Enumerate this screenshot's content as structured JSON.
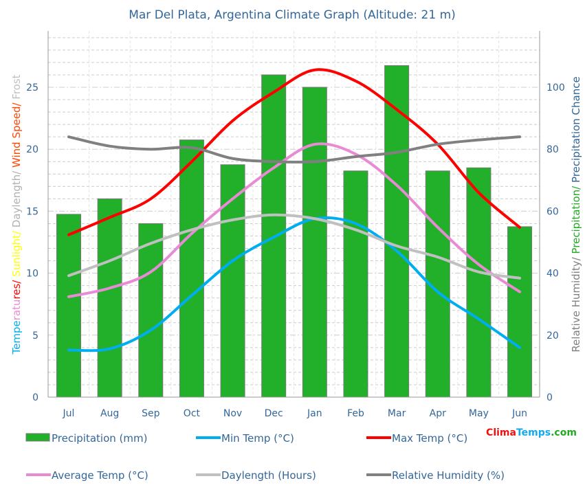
{
  "chart_data": {
    "type": "bar+line",
    "title": "Mar Del Plata, Argentina Climate Graph (Altitude: 21 m)",
    "categories": [
      "Jul",
      "Aug",
      "Sep",
      "Oct",
      "Nov",
      "Dec",
      "Jan",
      "Feb",
      "Mar",
      "Apr",
      "May",
      "Jun"
    ],
    "left_axis": {
      "label_parts": [
        {
          "text": "Tempe",
          "color": "#00aeef"
        },
        {
          "text": "ratu",
          "color": "#e88bd4"
        },
        {
          "text": "res/ ",
          "color": "#ff0000"
        },
        {
          "text": "Sunlight/ ",
          "color": "#ffff00"
        },
        {
          "text": "Daylength/ ",
          "color": "#b0b0b0"
        },
        {
          "text": "Wind Speed/ ",
          "color": "#ff4500"
        },
        {
          "text": "Frost",
          "color": "#c0c0c0"
        }
      ],
      "ticks": [
        0,
        5,
        10,
        15,
        20,
        25
      ],
      "range": [
        0,
        29.5
      ]
    },
    "right_axis": {
      "label_parts": [
        {
          "text": "Relative Humidity/ ",
          "color": "#808080"
        },
        {
          "text": "Precipitation/ ",
          "color": "#22aa22"
        },
        {
          "text": "Precipitation Chance",
          "color": "#336699"
        }
      ],
      "ticks": [
        0,
        20,
        40,
        60,
        80,
        100
      ],
      "range": [
        0,
        118
      ]
    },
    "grid": true,
    "series": [
      {
        "name": "Precipitation (mm)",
        "type": "bar",
        "axis": "right",
        "color": "#22b02a",
        "values": [
          59,
          64,
          56,
          83,
          75,
          104,
          100,
          73,
          107,
          73,
          74,
          55
        ]
      },
      {
        "name": "Min Temp (°C)",
        "type": "line",
        "axis": "left",
        "color": "#00aeef",
        "values": [
          3.8,
          3.9,
          5.4,
          8.2,
          11,
          12.9,
          14.4,
          14,
          11.8,
          8.5,
          6.3,
          4
        ]
      },
      {
        "name": "Max Temp (°C)",
        "type": "line",
        "axis": "left",
        "color": "#ff0000",
        "values": [
          13.1,
          14.5,
          16,
          19,
          22.3,
          24.6,
          26.4,
          25.5,
          23.2,
          20.4,
          16.5,
          13.7
        ]
      },
      {
        "name": "Average Temp (°C)",
        "type": "line",
        "axis": "left",
        "color": "#e88bd4",
        "values": [
          8.1,
          8.8,
          10.1,
          13.2,
          16,
          18.5,
          20.4,
          19.6,
          17.1,
          13.7,
          10.7,
          8.5
        ]
      },
      {
        "name": "Daylength (Hours)",
        "type": "line",
        "axis": "left",
        "color": "#c0c0c0",
        "values": [
          9.8,
          11,
          12.4,
          13.5,
          14.3,
          14.7,
          14.4,
          13.5,
          12.2,
          11.3,
          10.1,
          9.6
        ]
      },
      {
        "name": "Relative Humidity (%)",
        "type": "line",
        "axis": "right",
        "color": "#808080",
        "values": [
          84,
          81,
          80,
          80.5,
          77,
          76,
          76,
          77.6,
          79,
          81.6,
          83,
          84
        ]
      }
    ],
    "legend_placement": "bottom",
    "logo": [
      {
        "text": "Clima",
        "color": "#ee1111"
      },
      {
        "text": "Temps",
        "color": "#11aaee"
      },
      {
        "text": ".com",
        "color": "#22aa22"
      }
    ]
  }
}
